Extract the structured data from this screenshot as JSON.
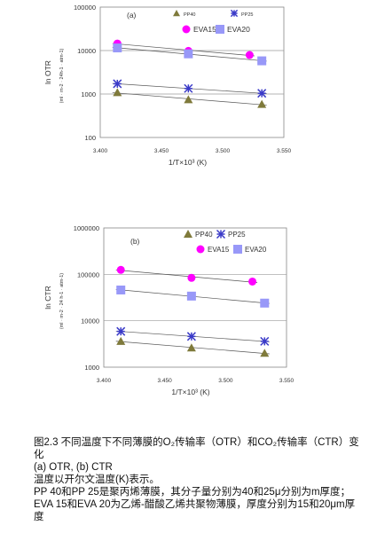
{
  "chart_data": [
    {
      "type": "scatter",
      "panel_label": "(a)",
      "ylabel": "ln OTR",
      "yunit": "(ml · m-2 · 24h-1 · atm-1)",
      "xlabel": "1/T×10³ (K)",
      "xlim": [
        3.4,
        3.55
      ],
      "ylim": [
        100,
        100000
      ],
      "yscale": "log",
      "y_ticks": [
        "100000",
        "10000",
        "1000",
        "100"
      ],
      "x_ticks": [
        "3.400",
        "3.450",
        "3.500",
        "3.550"
      ],
      "y_tick_values": [
        100000,
        10000,
        1000,
        100
      ],
      "x_tick_values": [
        3.4,
        3.45,
        3.5,
        3.55
      ],
      "gridlines_y": [
        10000,
        1000
      ],
      "legend": {
        "pp40": "PP40",
        "pp25": "PP25",
        "eva15": "EVA15",
        "eva20": "EVA20"
      },
      "series": [
        {
          "key": "pp40",
          "marker": "triangle",
          "color": "#7f7a3b",
          "x": [
            3.414,
            3.472,
            3.532
          ],
          "y": [
            1080,
            740,
            580
          ]
        },
        {
          "key": "pp25",
          "marker": "star",
          "color": "#3a3ac8",
          "x": [
            3.414,
            3.472,
            3.532
          ],
          "y": [
            1720,
            1340,
            1040
          ]
        },
        {
          "key": "eva15",
          "marker": "circle",
          "color": "#ff00ff",
          "x": [
            3.414,
            3.472,
            3.522
          ],
          "y": [
            14500,
            9800,
            7900
          ]
        },
        {
          "key": "eva20",
          "marker": "square",
          "color": "#9898f8",
          "x": [
            3.414,
            3.472,
            3.532
          ],
          "y": [
            11500,
            8400,
            5800
          ]
        }
      ]
    },
    {
      "type": "scatter",
      "panel_label": "(b)",
      "ylabel": "ln CTR",
      "yunit": "(ml · m-2 · 24 h-1 · atm-1)",
      "xlabel": "1/T×10³ (K)",
      "xlim": [
        3.4,
        3.55
      ],
      "ylim": [
        1000,
        1000000
      ],
      "yscale": "log",
      "y_ticks": [
        "1000000",
        "100000",
        "10000",
        "1000"
      ],
      "x_ticks": [
        "3.400",
        "3.450",
        "3.500",
        "3.550"
      ],
      "y_tick_values": [
        1000000,
        100000,
        10000,
        1000
      ],
      "x_tick_values": [
        3.4,
        3.45,
        3.5,
        3.55
      ],
      "gridlines_y": [
        100000,
        10000
      ],
      "legend": {
        "pp40": "PP40",
        "pp25": "PP25",
        "eva15": "EVA15",
        "eva20": "EVA20"
      },
      "series": [
        {
          "key": "pp40",
          "marker": "triangle",
          "color": "#7f7a3b",
          "x": [
            3.414,
            3.472,
            3.532
          ],
          "y": [
            3600,
            2600,
            2000
          ]
        },
        {
          "key": "pp25",
          "marker": "star",
          "color": "#3a3ac8",
          "x": [
            3.414,
            3.472,
            3.532
          ],
          "y": [
            5900,
            4600,
            3600
          ]
        },
        {
          "key": "eva15",
          "marker": "circle",
          "color": "#ff00ff",
          "x": [
            3.414,
            3.472,
            3.522
          ],
          "y": [
            125000,
            84000,
            70000
          ]
        },
        {
          "key": "eva20",
          "marker": "square",
          "color": "#9898f8",
          "x": [
            3.414,
            3.472,
            3.532
          ],
          "y": [
            46000,
            34000,
            24000
          ]
        }
      ]
    }
  ],
  "caption": {
    "line1": "图2.3 不同温度下不同薄膜的O₂传输率（OTR）和CO₂传输率（CTR）变化",
    "line2": "(a) OTR, (b) CTR",
    "line3": "温度以开尔文温度(K)表示。",
    "line4": "PP 40和PP 25是聚丙烯薄膜，其分子量分别为40和25μ分别为m厚度；EVA 15和EVA 20为乙烯-醋酸乙烯共聚物薄膜，厚度分别为15和20μm厚度"
  }
}
